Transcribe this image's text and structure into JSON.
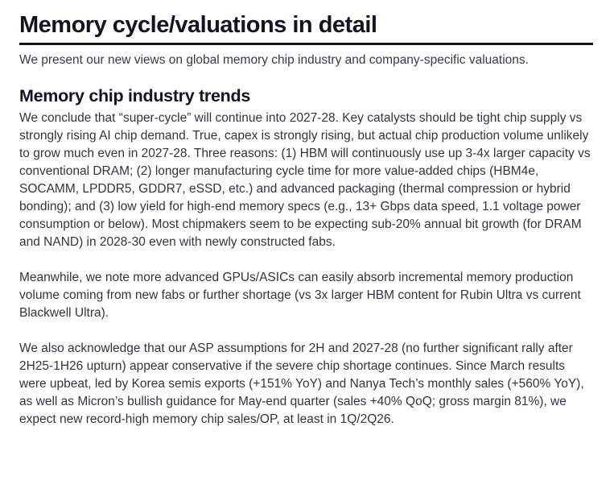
{
  "document": {
    "title": "Memory cycle/valuations in detail",
    "lede": "We present our new views on global memory chip industry and company-specific valuations.",
    "section_heading": "Memory chip industry trends",
    "paragraphs": [
      "We conclude that “super-cycle” will continue into 2027-28. Key catalysts should be tight chip supply vs strongly rising AI chip demand. True, capex is strongly rising, but actual chip production volume unlikely to grow much even in 2027-28. Three reasons: (1) HBM will continuously use up 3-4x larger capacity vs conventional DRAM; (2) longer manufacturing cycle time for more value-added chips (HBM4e, SOCAMM, LPDDR5, GDDR7, eSSD, etc.) and advanced packaging (thermal compression or hybrid bonding); and (3) low yield for high-end memory specs (e.g., 13+ Gbps data speed, 1.1 voltage power consumption or below). Most chipmakers seem to be expecting sub-20% annual bit growth (for DRAM and NAND) in 2028-30 even with newly constructed fabs.",
      "Meanwhile, we note more advanced GPUs/ASICs can easily absorb incremental memory production volume coming from new fabs or further shortage (vs 3x larger HBM content for Rubin Ultra vs current Blackwell Ultra).",
      "We also acknowledge that our ASP assumptions for 2H and 2027-28 (no further significant rally after 2H25-1H26 upturn) appear conservative if the severe chip shortage continues. Since March results were upbeat, led by Korea semis exports (+151% YoY) and Nanya Tech’s monthly sales (+560% YoY), as well as Micron’s bullish guidance for May-end quarter (sales +40% QoQ; gross margin 81%), we expect new record-high memory chip sales/OP, at least in 1Q/2Q26."
    ]
  },
  "colors": {
    "heading": "#131325",
    "rule": "#131325",
    "body_text": "#34343f",
    "lede_text": "#3a3a48",
    "background": "#ffffff"
  }
}
